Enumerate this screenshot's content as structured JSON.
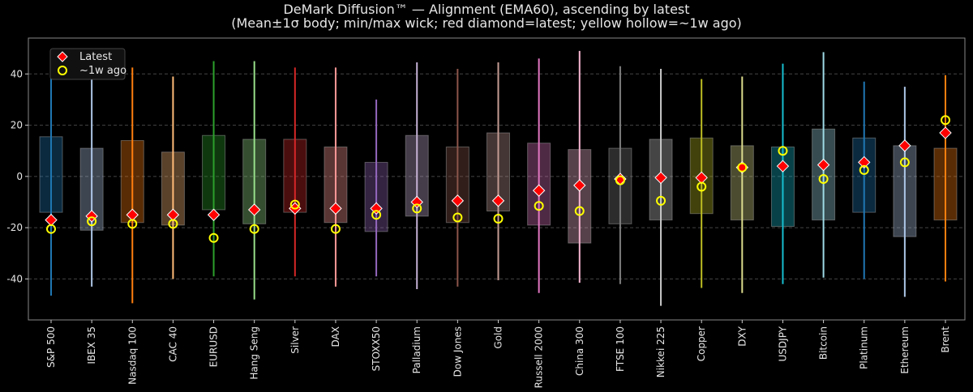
{
  "chart_data": {
    "type": "box",
    "title": "DeMark Diffusion™ — Alignment (EMA60), ascending by latest",
    "subtitle": "(Mean±1σ body; min/max wick; red diamond=latest; yellow hollow=~1w ago)",
    "xlabel": "",
    "ylabel": "",
    "ylim": [
      -56,
      54
    ],
    "yticks": [
      -40,
      -20,
      0,
      20,
      40
    ],
    "grid": true,
    "legend_placement": "top-left",
    "legend": [
      {
        "label": "Latest",
        "marker": "red-diamond",
        "color": "#ff0000"
      },
      {
        "label": "~1w ago",
        "marker": "yellow-hollow-circle",
        "color": "#ffff00"
      }
    ],
    "categories": [
      "S&P 500",
      "IBEX 35",
      "Nasdaq 100",
      "CAC 40",
      "EURUSD",
      "Hang Seng",
      "Silver",
      "DAX",
      "STOXX50",
      "Palladium",
      "Dow Jones",
      "Gold",
      "Russell 2000",
      "China 300",
      "FTSE 100",
      "Nikkei 225",
      "Copper",
      "DXY",
      "USDJPY",
      "Bitcoin",
      "Platinum",
      "Ethereum",
      "Brent"
    ],
    "colors": [
      "#1f77b4",
      "#aec7e8",
      "#ff7f0e",
      "#ffbb78",
      "#2ca02c",
      "#98df8a",
      "#d62728",
      "#ff9896",
      "#9467bd",
      "#c5b0d5",
      "#8c564b",
      "#c49c94",
      "#e377c2",
      "#f7b6d2",
      "#7f7f7f",
      "#c7c7c7",
      "#bcbd22",
      "#dbdb8d",
      "#17becf",
      "#9edae5",
      "#1f77b4",
      "#aec7e8",
      "#ff7f0e"
    ],
    "body_high": [
      15.5,
      11,
      14,
      9.5,
      16,
      14.5,
      14.5,
      11.5,
      5.5,
      16,
      11.5,
      17,
      13,
      10.5,
      11,
      14.5,
      15,
      12,
      11.5,
      18.5,
      15,
      12,
      11
    ],
    "body_low": [
      -14,
      -21,
      -18,
      -19,
      -13,
      -18.5,
      -14,
      -18,
      -21.5,
      -15.5,
      -18,
      -13.5,
      -19,
      -26,
      -18.5,
      -17,
      -14.5,
      -17,
      -19.5,
      -17,
      -14,
      -23.5,
      -17
    ],
    "max": [
      46,
      46,
      42.5,
      39,
      45,
      45,
      42.5,
      42.5,
      30,
      44.5,
      42,
      44.5,
      46,
      49,
      43,
      42,
      38,
      39,
      44,
      48.5,
      37,
      35,
      39.5
    ],
    "min": [
      -46.5,
      -43,
      -49.5,
      -40,
      -39,
      -48,
      -39,
      -43,
      -39,
      -44,
      -43,
      -40.5,
      -45.5,
      -41.5,
      -42,
      -50.5,
      -43.5,
      -45.5,
      -42,
      -39.5,
      -40,
      -47,
      -41
    ],
    "latest": [
      -17,
      -15.5,
      -15,
      -15,
      -15,
      -13,
      -12.5,
      -12.5,
      -12.5,
      -10,
      -9.5,
      -9.5,
      -5.5,
      -3.5,
      -1,
      -0.5,
      -0.5,
      3.5,
      4,
      4.5,
      5.5,
      12,
      17
    ],
    "week_ago": [
      -20.5,
      -17.5,
      -18.5,
      -18.5,
      -24,
      -20.5,
      -11,
      -20.5,
      -15,
      -12.5,
      -16,
      -16.5,
      -11.5,
      -13.5,
      -1.5,
      -9.5,
      -4,
      3.5,
      10,
      -1,
      2.5,
      5.5,
      22
    ]
  }
}
